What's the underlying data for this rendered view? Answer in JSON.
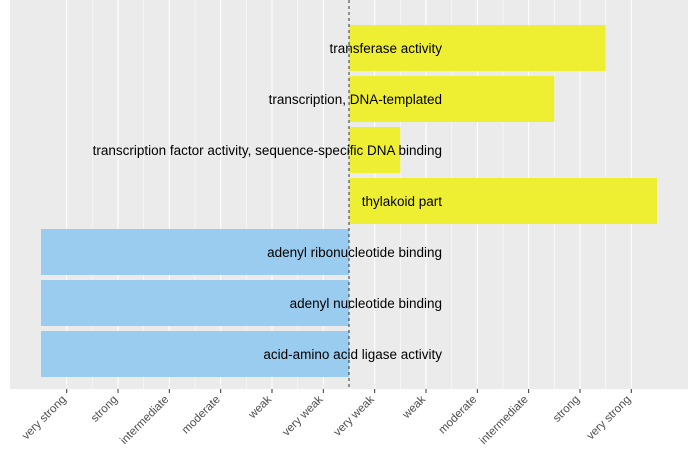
{
  "chart_data": {
    "type": "bar",
    "orientation": "horizontal-diverging",
    "x_tick_labels": [
      "very strong",
      "strong",
      "intermediate",
      "moderate",
      "weak",
      "very weak",
      "very weak",
      "weak",
      "moderate",
      "intermediate",
      "strong",
      "very strong"
    ],
    "xlim": [
      -6,
      6
    ],
    "reference_line": 0,
    "grid": true,
    "categories": [
      "transferase activity",
      "transcription, DNA-templated",
      "transcription factor activity, sequence-specific DNA binding",
      "thylakoid part",
      "adenyl ribonucleotide binding",
      "adenyl nucleotide binding",
      "acid-amino acid ligase activity"
    ],
    "values": [
      5,
      4,
      1,
      6,
      -6,
      -6,
      -6
    ],
    "colors": {
      "positive": "#eeee33",
      "negative": "#99ccee",
      "panel": "#ebebeb",
      "grid": "#ffffff",
      "reference_line": "#333333"
    }
  }
}
